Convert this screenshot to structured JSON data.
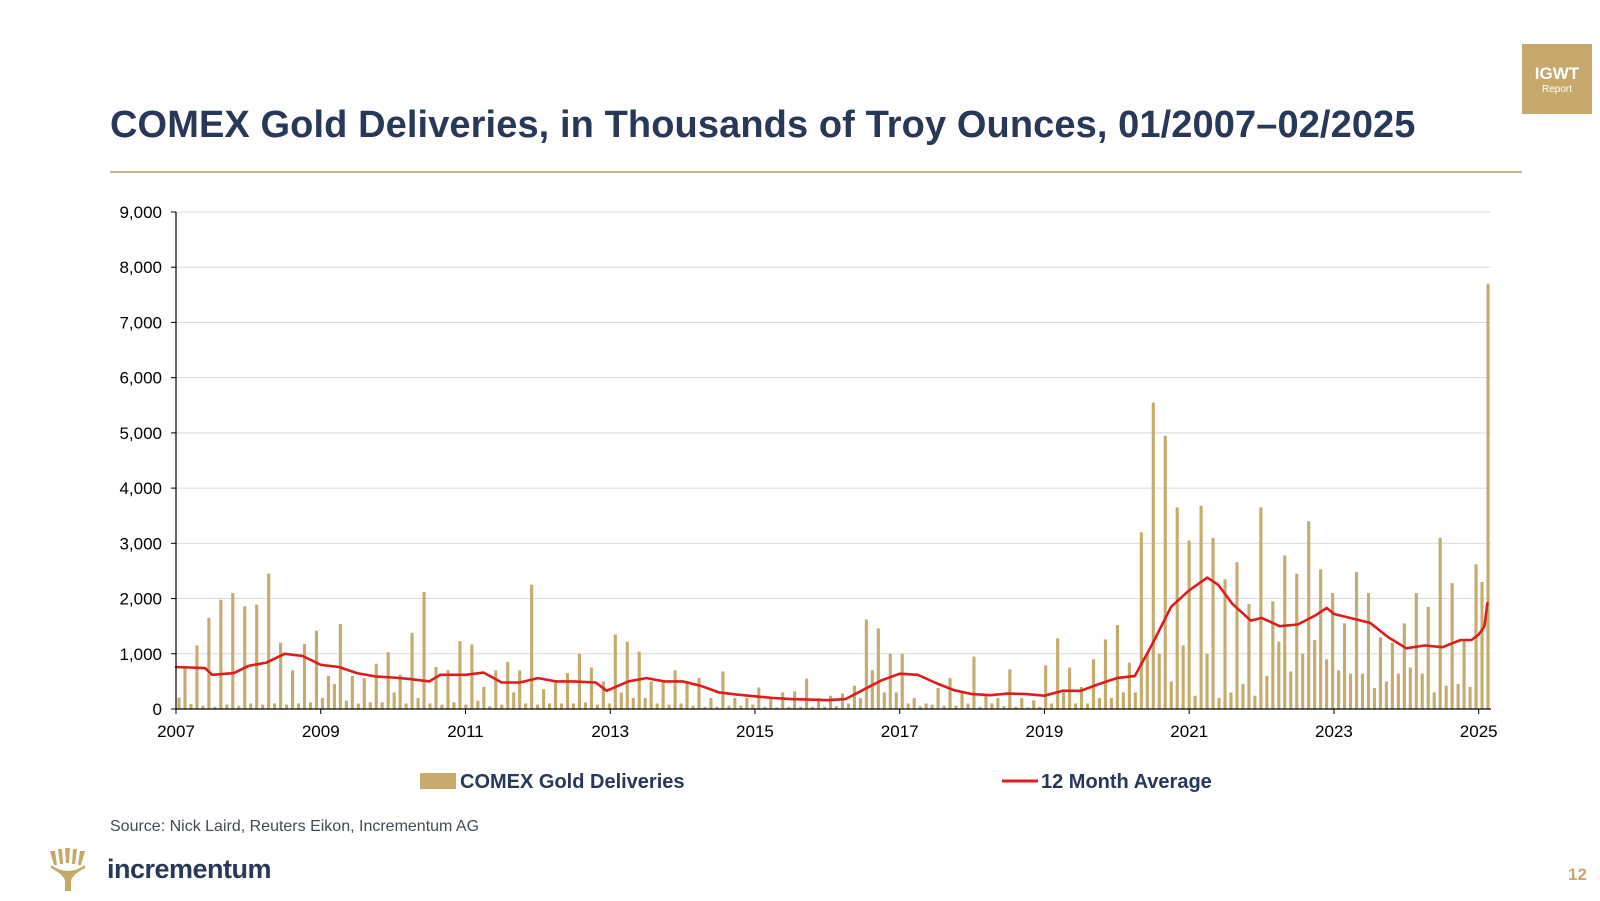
{
  "header": {
    "title": "COMEX Gold Deliveries, in Thousands of Troy Ounces, 01/2007–02/2025",
    "badge_title": "IGWT",
    "badge_subtitle": "Report"
  },
  "footer": {
    "source": "Source: Nick Laird, Reuters Eikon, Incrementum AG",
    "brand": "incrementum",
    "page_number": "12"
  },
  "colors": {
    "title": "#283858",
    "bar": "#c6ab6d",
    "average_line": "#e01b1b",
    "gold_accent": "#c6a96a"
  },
  "chart_data": {
    "type": "bar",
    "title": "COMEX Gold Deliveries, in Thousands of Troy Ounces, 01/2007–02/2025",
    "xlabel": "",
    "ylabel": "",
    "ylim": [
      0,
      9000
    ],
    "yticks": [
      0,
      1000,
      2000,
      3000,
      4000,
      5000,
      6000,
      7000,
      8000,
      9000
    ],
    "ytick_labels": [
      "0",
      "1,000",
      "2,000",
      "3,000",
      "4,000",
      "5,000",
      "6,000",
      "7,000",
      "8,000",
      "9,000"
    ],
    "xticks": [
      "2007",
      "2009",
      "2011",
      "2013",
      "2015",
      "2017",
      "2019",
      "2021",
      "2023",
      "2025"
    ],
    "grid": true,
    "start_period": "01/2007",
    "end_period": "02/2025",
    "legend_position": "bottom",
    "series": [
      {
        "name": "COMEX Gold Deliveries",
        "type": "bar",
        "values": [
          210,
          780,
          90,
          1150,
          60,
          1650,
          40,
          1980,
          80,
          2100,
          60,
          1860,
          100,
          1890,
          80,
          2450,
          100,
          1200,
          80,
          700,
          100,
          1180,
          120,
          1420,
          200,
          600,
          450,
          1540,
          150,
          600,
          100,
          560,
          120,
          820,
          120,
          1030,
          300,
          620,
          100,
          1380,
          200,
          2120,
          100,
          760,
          80,
          700,
          120,
          1230,
          80,
          1170,
          150,
          400,
          50,
          700,
          80,
          850,
          300,
          700,
          100,
          2250,
          80,
          360,
          100,
          500,
          100,
          650,
          100,
          1000,
          120,
          750,
          80,
          500,
          100,
          1350,
          300,
          1220,
          200,
          1040,
          200,
          500,
          100,
          500,
          80,
          700,
          100,
          500,
          60,
          560,
          40,
          200,
          40,
          680,
          60,
          200,
          60,
          200,
          80,
          390,
          40,
          200,
          30,
          300,
          40,
          320,
          40,
          550,
          40,
          200,
          40,
          240,
          50,
          280,
          100,
          420,
          200,
          1620,
          700,
          1460,
          300,
          1000,
          300,
          1000,
          100,
          200,
          50,
          100,
          80,
          380,
          60,
          560,
          60,
          300,
          100,
          950,
          40,
          250,
          100,
          200,
          50,
          720,
          40,
          200,
          30,
          160,
          40,
          790,
          100,
          1280,
          300,
          750,
          100,
          400,
          100,
          900,
          200,
          1260,
          200,
          1520,
          300,
          840,
          300,
          3200,
          1000,
          5550,
          1000,
          4950,
          500,
          3650,
          1150,
          3050,
          240,
          3680,
          1000,
          3100,
          200,
          2350,
          300,
          2660,
          450,
          1900,
          240,
          3650,
          600,
          1950,
          1220,
          2780,
          680,
          2450,
          1000,
          3400,
          1250,
          2530,
          900,
          2100,
          700,
          1550,
          640,
          2480,
          640,
          2100,
          380,
          1300,
          500,
          1200,
          640,
          1550,
          750,
          2100,
          640,
          1850,
          300,
          3100,
          420,
          2280,
          450,
          1250,
          400,
          2620,
          2300,
          7700
        ]
      },
      {
        "name": "12 Month Average",
        "type": "line",
        "points": [
          [
            2007.0,
            760
          ],
          [
            2007.4,
            740
          ],
          [
            2007.5,
            620
          ],
          [
            2007.8,
            650
          ],
          [
            2008.0,
            780
          ],
          [
            2008.25,
            840
          ],
          [
            2008.5,
            1000
          ],
          [
            2008.75,
            960
          ],
          [
            2009.0,
            800
          ],
          [
            2009.25,
            760
          ],
          [
            2009.5,
            650
          ],
          [
            2009.75,
            590
          ],
          [
            2010.0,
            570
          ],
          [
            2010.25,
            540
          ],
          [
            2010.5,
            500
          ],
          [
            2010.65,
            620
          ],
          [
            2011.0,
            620
          ],
          [
            2011.25,
            660
          ],
          [
            2011.5,
            480
          ],
          [
            2011.75,
            480
          ],
          [
            2012.0,
            560
          ],
          [
            2012.25,
            500
          ],
          [
            2012.5,
            500
          ],
          [
            2012.8,
            480
          ],
          [
            2012.95,
            330
          ],
          [
            2013.25,
            500
          ],
          [
            2013.5,
            560
          ],
          [
            2013.75,
            500
          ],
          [
            2014.0,
            500
          ],
          [
            2014.25,
            420
          ],
          [
            2014.5,
            300
          ],
          [
            2014.75,
            260
          ],
          [
            2015.0,
            230
          ],
          [
            2015.25,
            200
          ],
          [
            2015.5,
            180
          ],
          [
            2015.75,
            170
          ],
          [
            2016.0,
            160
          ],
          [
            2016.25,
            180
          ],
          [
            2016.5,
            350
          ],
          [
            2016.75,
            520
          ],
          [
            2017.0,
            640
          ],
          [
            2017.25,
            620
          ],
          [
            2017.5,
            470
          ],
          [
            2017.75,
            340
          ],
          [
            2018.0,
            270
          ],
          [
            2018.25,
            250
          ],
          [
            2018.5,
            280
          ],
          [
            2018.75,
            270
          ],
          [
            2019.0,
            240
          ],
          [
            2019.25,
            330
          ],
          [
            2019.5,
            330
          ],
          [
            2019.75,
            450
          ],
          [
            2020.0,
            560
          ],
          [
            2020.25,
            600
          ],
          [
            2020.5,
            1200
          ],
          [
            2020.75,
            1850
          ],
          [
            2021.0,
            2150
          ],
          [
            2021.25,
            2380
          ],
          [
            2021.4,
            2250
          ],
          [
            2021.6,
            1900
          ],
          [
            2021.85,
            1600
          ],
          [
            2022.0,
            1650
          ],
          [
            2022.25,
            1500
          ],
          [
            2022.5,
            1530
          ],
          [
            2022.75,
            1700
          ],
          [
            2022.9,
            1830
          ],
          [
            2023.0,
            1720
          ],
          [
            2023.25,
            1640
          ],
          [
            2023.5,
            1560
          ],
          [
            2023.75,
            1300
          ],
          [
            2024.0,
            1100
          ],
          [
            2024.25,
            1150
          ],
          [
            2024.5,
            1120
          ],
          [
            2024.75,
            1250
          ],
          [
            2024.9,
            1250
          ],
          [
            2025.0,
            1350
          ],
          [
            2025.08,
            1500
          ],
          [
            2025.12,
            1920
          ]
        ]
      }
    ]
  }
}
